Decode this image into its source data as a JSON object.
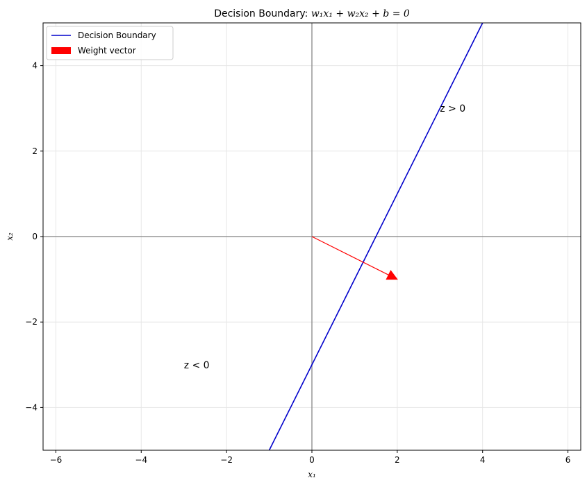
{
  "chart_data": {
    "type": "line",
    "title": {
      "prefix": "Decision Boundary: ",
      "equation": "w₁x₁ + w₂x₂ + b = 0"
    },
    "xlabel": "x₁",
    "ylabel": "x₂",
    "xlim": [
      -6.3,
      6.3
    ],
    "ylim": [
      -5,
      5
    ],
    "xticks": [
      -6,
      -4,
      -2,
      0,
      2,
      4,
      6
    ],
    "yticks": [
      -4,
      -2,
      0,
      2,
      4
    ],
    "xtick_labels": [
      "−6",
      "−4",
      "−2",
      "0",
      "2",
      "4",
      "6"
    ],
    "ytick_labels": [
      "−4",
      "−2",
      "0",
      "2",
      "4"
    ],
    "grid": true,
    "legend_position": "top-left",
    "series": [
      {
        "name": "Decision Boundary",
        "color": "#0000cc",
        "x": [
          -1,
          4
        ],
        "y": [
          -5,
          5
        ]
      }
    ],
    "arrows": [
      {
        "name": "Weight vector",
        "color": "#ff0000",
        "x0": 0,
        "y0": 0,
        "dx": 2,
        "dy": -1
      }
    ],
    "annotations": [
      {
        "text": "z > 0",
        "x": 3,
        "y": 3
      },
      {
        "text": "z < 0",
        "x": -3,
        "y": -3
      }
    ],
    "reference_lines": {
      "color": "#808080",
      "x": 0,
      "y": 0
    }
  }
}
